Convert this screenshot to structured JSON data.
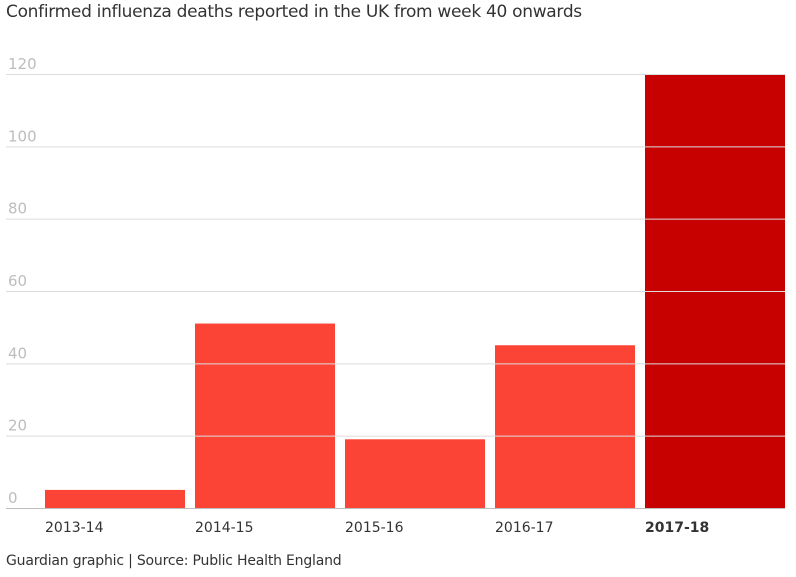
{
  "chart_data": {
    "type": "bar",
    "title": "Confirmed influenza deaths reported in the UK from week 40 onwards",
    "xlabel": "",
    "ylabel": "",
    "categories": [
      "2013-14",
      "2014-15",
      "2015-16",
      "2016-17",
      "2017-18"
    ],
    "values": [
      5,
      51,
      19,
      45,
      120
    ],
    "highlight_index": 4,
    "ylim": [
      0,
      120
    ],
    "yticks": [
      0,
      20,
      40,
      60,
      80,
      100,
      120
    ],
    "grid": true,
    "colors": {
      "bar": "#fc4436",
      "highlight": "#c70000",
      "grid": "#dcdcdc",
      "tick_label": "#bdbdbd",
      "text": "#333333"
    }
  },
  "footer": "Guardian graphic | Source: Public Health England"
}
